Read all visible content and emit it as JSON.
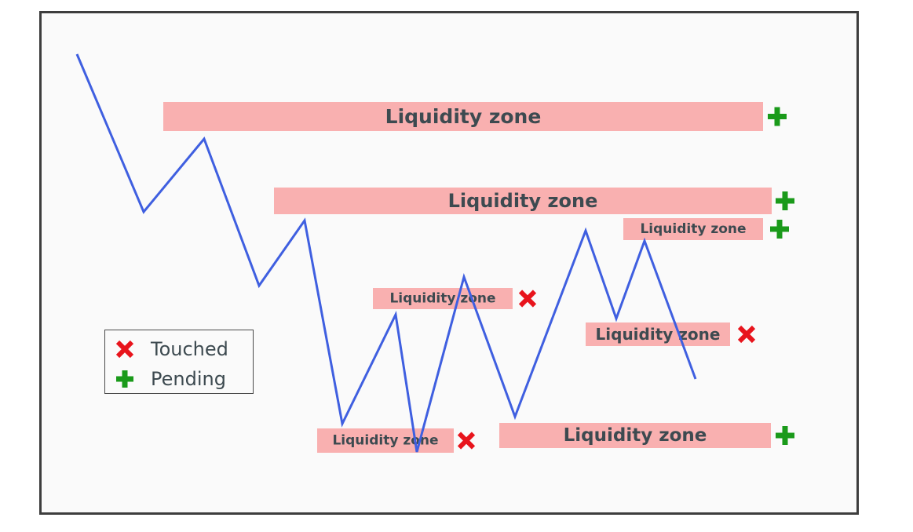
{
  "colors": {
    "frame": "#3d3d3d",
    "background": "#fafafa",
    "zone_fill": "#f9b0b0",
    "price_line": "#3f5fe0",
    "touched": "#e8141c",
    "pending": "#1a9a1a",
    "label_text": "#3d4a50"
  },
  "zones": [
    {
      "label": "Liquidity zone",
      "status": "pending"
    },
    {
      "label": "Liquidity zone",
      "status": "pending"
    },
    {
      "label": "Liquidity zone",
      "status": "pending"
    },
    {
      "label": "Liquidity zone",
      "status": "touched"
    },
    {
      "label": "Liquidity zone",
      "status": "touched"
    },
    {
      "label": "Liquidity zone",
      "status": "touched"
    },
    {
      "label": "Liquidity zone",
      "status": "pending"
    }
  ],
  "legend": {
    "touched_label": "Touched",
    "pending_label": "Pending",
    "touched_icon": "cross-icon",
    "pending_icon": "plus-icon"
  }
}
